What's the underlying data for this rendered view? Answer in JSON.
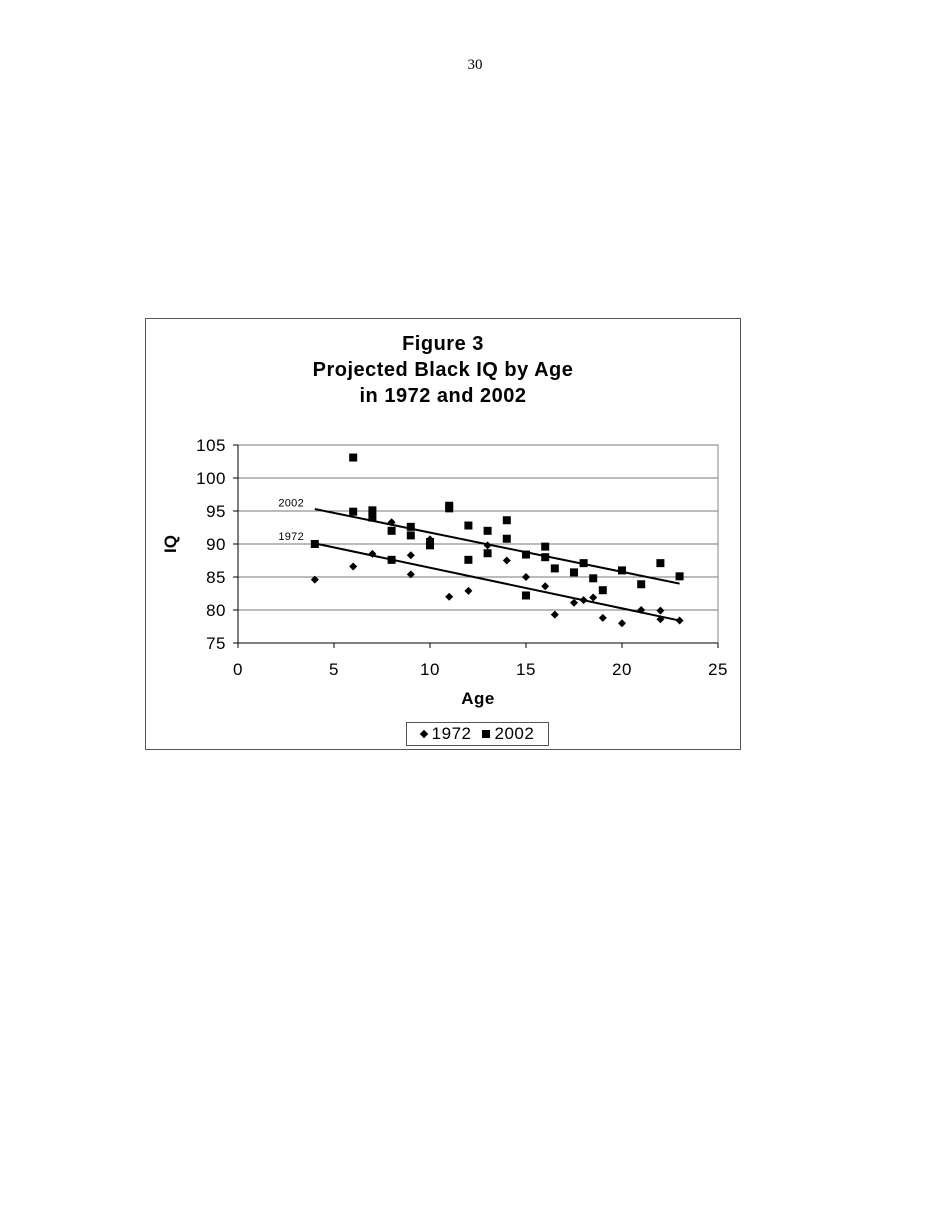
{
  "page": {
    "number": "30"
  },
  "chart_data": {
    "type": "scatter",
    "title": "Figure 3\nProjected Black IQ by Age\nin 1972 and 2002",
    "title_lines": [
      "Figure 3",
      "Projected Black IQ by Age",
      "in 1972 and 2002"
    ],
    "xlabel": "Age",
    "ylabel": "IQ",
    "xlim": [
      0,
      25
    ],
    "ylim": [
      75,
      105
    ],
    "xticks": [
      0,
      5,
      10,
      15,
      20,
      25
    ],
    "yticks": [
      75,
      80,
      85,
      90,
      95,
      100,
      105
    ],
    "grid": "horizontal major gridlines",
    "legend_position": "bottom",
    "legend": [
      "1972",
      "2002"
    ],
    "annotations": [
      {
        "text": "2002",
        "x": 2.1,
        "y": 96.3
      },
      {
        "text": "1972",
        "x": 2.1,
        "y": 91.2
      }
    ],
    "series": [
      {
        "name": "1972",
        "marker": "diamond",
        "points": [
          [
            4,
            84.6
          ],
          [
            6,
            86.6
          ],
          [
            7,
            88.5
          ],
          [
            8,
            93.3
          ],
          [
            9,
            88.3
          ],
          [
            9,
            85.4
          ],
          [
            10,
            90.7
          ],
          [
            10,
            90.3
          ],
          [
            11,
            82.0
          ],
          [
            12,
            82.9
          ],
          [
            13,
            89.8
          ],
          [
            14,
            87.5
          ],
          [
            15,
            85.0
          ],
          [
            16,
            83.6
          ],
          [
            16.5,
            79.3
          ],
          [
            17.5,
            81.1
          ],
          [
            18,
            81.5
          ],
          [
            18.5,
            81.9
          ],
          [
            19,
            78.8
          ],
          [
            20,
            78.0
          ],
          [
            21,
            80.0
          ],
          [
            22,
            79.9
          ],
          [
            22,
            78.6
          ],
          [
            23,
            78.4
          ]
        ],
        "trendline": {
          "x": [
            4,
            23
          ],
          "y": [
            90.1,
            78.4
          ]
        }
      },
      {
        "name": "2002",
        "marker": "square",
        "points": [
          [
            4,
            90.0
          ],
          [
            6,
            103.1
          ],
          [
            6,
            94.9
          ],
          [
            7,
            95.1
          ],
          [
            7,
            94.0
          ],
          [
            8,
            92.0
          ],
          [
            8,
            87.6
          ],
          [
            9,
            92.6
          ],
          [
            9,
            91.3
          ],
          [
            10,
            90.3
          ],
          [
            10,
            89.8
          ],
          [
            11,
            95.8
          ],
          [
            11,
            95.4
          ],
          [
            12,
            92.8
          ],
          [
            12,
            87.6
          ],
          [
            13,
            92.0
          ],
          [
            13,
            88.6
          ],
          [
            14,
            93.6
          ],
          [
            14,
            90.8
          ],
          [
            15,
            88.4
          ],
          [
            15,
            82.2
          ],
          [
            16,
            89.6
          ],
          [
            16,
            88.0
          ],
          [
            16.5,
            86.3
          ],
          [
            17.5,
            85.7
          ],
          [
            18,
            87.1
          ],
          [
            18.5,
            84.8
          ],
          [
            19,
            83.0
          ],
          [
            20,
            86.0
          ],
          [
            21,
            83.9
          ],
          [
            22,
            87.1
          ],
          [
            23,
            85.1
          ]
        ],
        "trendline": {
          "x": [
            4,
            23
          ],
          "y": [
            95.3,
            84.0
          ]
        }
      }
    ]
  }
}
